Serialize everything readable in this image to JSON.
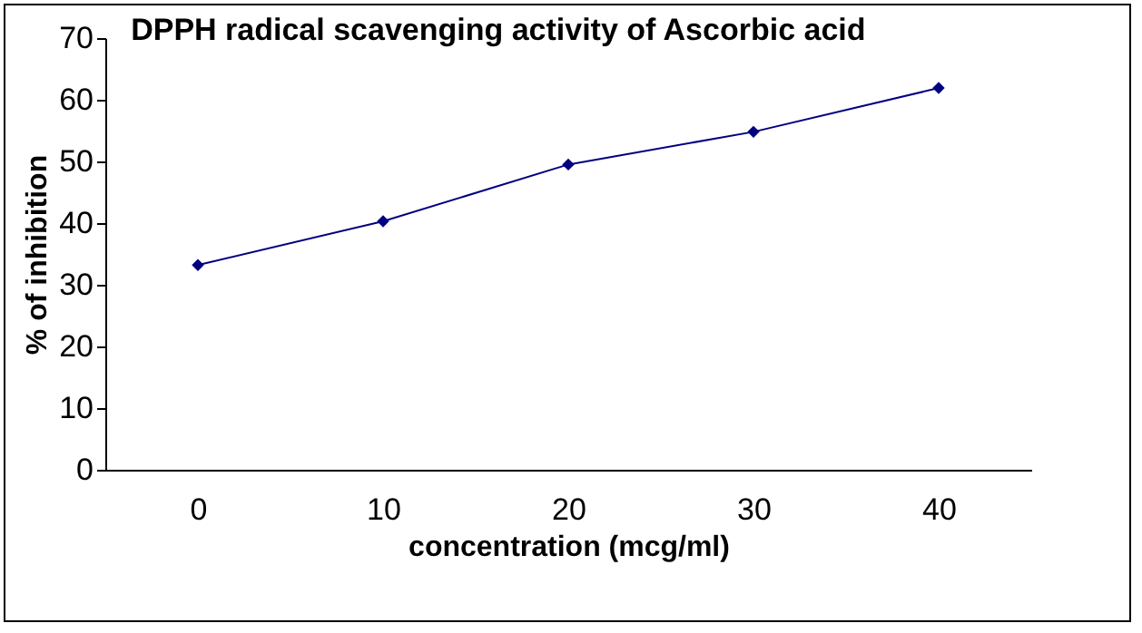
{
  "chart_data": {
    "type": "line",
    "title": "DPPH radical scavenging activity of Ascorbic acid",
    "xlabel": "concentration (mcg/ml)",
    "ylabel": "% of inhibition",
    "categories": [
      "0",
      "10",
      "20",
      "30",
      "40"
    ],
    "series": [
      {
        "color": "#000080",
        "values": [
          33.2,
          40.3,
          49.5,
          54.8,
          61.9
        ]
      }
    ],
    "ylim": [
      0,
      70
    ],
    "yticks": [
      0,
      10,
      20,
      30,
      40,
      50,
      60,
      70
    ],
    "grid": false,
    "legend": false,
    "marker": "diamond",
    "line_style": "solid"
  }
}
